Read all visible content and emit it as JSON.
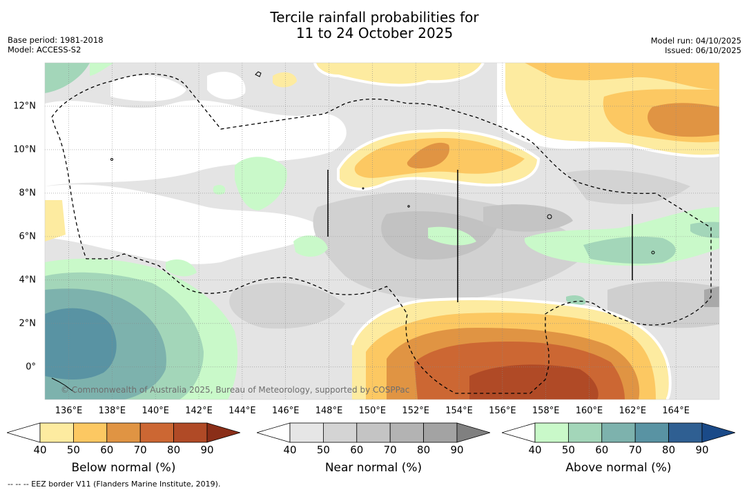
{
  "title": {
    "line1": "Tercile rainfall probabilities for",
    "line2": "11 to 24 October 2025"
  },
  "meta_left": {
    "base_period": "Base period: 1981-2018",
    "model": "Model: ACCESS-S2"
  },
  "meta_right": {
    "model_run": "Model run: 04/10/2025",
    "issued": "Issued: 06/10/2025"
  },
  "axes": {
    "lon_labels": [
      "136°E",
      "138°E",
      "140°E",
      "142°E",
      "144°E",
      "146°E",
      "148°E",
      "150°E",
      "152°E",
      "154°E",
      "156°E",
      "158°E",
      "160°E",
      "162°E",
      "164°E"
    ],
    "lon_values": [
      136,
      138,
      140,
      142,
      144,
      146,
      148,
      150,
      152,
      154,
      156,
      158,
      160,
      162,
      164
    ],
    "lat_labels": [
      "12°N",
      "10°N",
      "8°N",
      "6°N",
      "4°N",
      "2°N",
      "0°"
    ],
    "lat_values": [
      12,
      10,
      8,
      6,
      4,
      2,
      0
    ],
    "lon_range": [
      134.9,
      166
    ],
    "lat_range": [
      -1.5,
      14
    ]
  },
  "copyright": "© Commonwealth of Australia 2025, Bureau of Meteorology, supported by COSPPac",
  "footnote": "--  --  -- EEZ border V11 (Flanders Marine Institute, 2019).",
  "colorbars": [
    {
      "name": "below",
      "label": "Below normal (%)",
      "ticks": [
        "40",
        "50",
        "60",
        "70",
        "80",
        "90"
      ],
      "colors": [
        "#ffffff",
        "#fdeba0",
        "#fcc862",
        "#e09443",
        "#cc6733",
        "#b04a26",
        "#8a2e18"
      ]
    },
    {
      "name": "near",
      "label": "Near normal (%)",
      "ticks": [
        "40",
        "50",
        "60",
        "70",
        "80",
        "90"
      ],
      "colors": [
        "#ffffff",
        "#e6e6e6",
        "#d4d4d4",
        "#c4c4c4",
        "#b3b3b3",
        "#a3a3a3",
        "#808080"
      ]
    },
    {
      "name": "above",
      "label": "Above normal (%)",
      "ticks": [
        "40",
        "50",
        "60",
        "70",
        "80",
        "90"
      ],
      "colors": [
        "#ffffff",
        "#c9f9c9",
        "#a3d6b9",
        "#7db2ad",
        "#5993a3",
        "#2f5f92",
        "#1a4a88"
      ]
    }
  ]
}
